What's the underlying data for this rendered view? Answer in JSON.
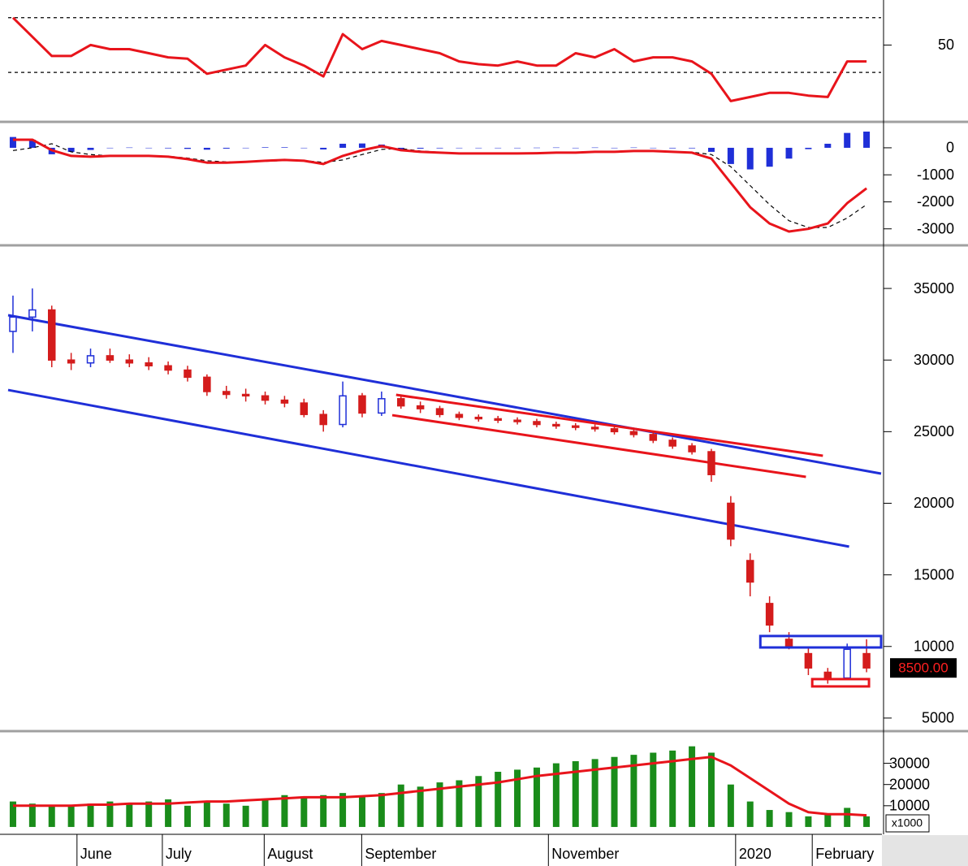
{
  "chart_data": [
    {
      "type": "line",
      "x": [
        1,
        5,
        9,
        13,
        17,
        21,
        25,
        29,
        33,
        37,
        41,
        45,
        49,
        53,
        57,
        61,
        65,
        69,
        73,
        77,
        81,
        85,
        89,
        93,
        97,
        101,
        105,
        109,
        113,
        117,
        121,
        125,
        129,
        133,
        137,
        141,
        145,
        149,
        153,
        157,
        161,
        165,
        169,
        173,
        177
      ],
      "xlim": [
        0,
        180
      ],
      "ylim": [
        -5,
        77
      ],
      "yticks": [
        50
      ],
      "hlines": [
        30,
        70
      ],
      "series": [
        {
          "style": "solid",
          "color": "#e8141b",
          "values": [
            70,
            56,
            42,
            42,
            50,
            47,
            47,
            44,
            41,
            40,
            29,
            32,
            35,
            50,
            41,
            35,
            27,
            58,
            47,
            53,
            50,
            47,
            44,
            38,
            36,
            35,
            38,
            35,
            35,
            44,
            41,
            47,
            38,
            41,
            41,
            38,
            29,
            9,
            12,
            15,
            15,
            13,
            12,
            38,
            38
          ]
        }
      ]
    },
    {
      "type": "line",
      "x": [
        1,
        5,
        9,
        13,
        17,
        21,
        25,
        29,
        33,
        37,
        41,
        45,
        49,
        53,
        57,
        61,
        65,
        69,
        73,
        77,
        81,
        85,
        89,
        93,
        97,
        101,
        105,
        109,
        113,
        117,
        121,
        125,
        129,
        133,
        137,
        141,
        145,
        149,
        153,
        157,
        161,
        165,
        169,
        173,
        177
      ],
      "xlim": [
        0,
        180
      ],
      "ylim": [
        -3550,
        900
      ],
      "yticks": [
        0,
        -1000,
        -2000,
        -3000
      ],
      "series": [
        {
          "style": "bar",
          "color": "#1f2fd8",
          "values": [
            400,
            300,
            -240,
            -150,
            -80,
            0,
            10,
            0,
            -20,
            -40,
            -70,
            -30,
            0,
            20,
            20,
            -10,
            -60,
            150,
            160,
            120,
            -60,
            -30,
            -20,
            -10,
            0,
            0,
            0,
            5,
            10,
            0,
            10,
            0,
            10,
            0,
            -20,
            -20,
            -150,
            -600,
            -800,
            -700,
            -400,
            -50,
            150,
            550,
            600
          ]
        },
        {
          "style": "dashed",
          "color": "#000000",
          "values": [
            -100,
            0,
            150,
            -150,
            -250,
            -300,
            -310,
            -300,
            -310,
            -380,
            -480,
            -520,
            -520,
            -500,
            -470,
            -470,
            -540,
            -450,
            -250,
            -60,
            -30,
            -120,
            -160,
            -200,
            -210,
            -210,
            -210,
            -205,
            -190,
            -180,
            -160,
            -150,
            -130,
            -120,
            -130,
            -160,
            -250,
            -700,
            -1400,
            -2100,
            -2700,
            -2950,
            -2950,
            -2600,
            -2100
          ]
        },
        {
          "style": "solid",
          "color": "#e8141b",
          "values": [
            300,
            300,
            -90,
            -300,
            -330,
            -300,
            -300,
            -300,
            -330,
            -420,
            -550,
            -550,
            -520,
            -480,
            -450,
            -480,
            -600,
            -300,
            -90,
            60,
            -90,
            -150,
            -180,
            -210,
            -210,
            -210,
            -210,
            -200,
            -180,
            -180,
            -150,
            -150,
            -120,
            -120,
            -150,
            -180,
            -400,
            -1300,
            -2200,
            -2800,
            -3100,
            -3000,
            -2800,
            -2050,
            -1500
          ]
        }
      ]
    },
    {
      "type": "candlestick",
      "x": [
        1,
        5,
        9,
        13,
        17,
        21,
        25,
        29,
        33,
        37,
        41,
        45,
        49,
        53,
        57,
        61,
        65,
        69,
        73,
        77,
        81,
        85,
        89,
        93,
        97,
        101,
        105,
        109,
        113,
        117,
        121,
        125,
        129,
        133,
        137,
        141,
        145,
        149,
        153,
        157,
        161,
        165,
        169,
        173,
        177
      ],
      "xlim": [
        0,
        180
      ],
      "ylim": [
        4200,
        37840
      ],
      "yticks": [
        5000,
        10000,
        15000,
        20000,
        25000,
        30000,
        35000
      ],
      "up_color": "#1f2fd8",
      "down_color": "#d41c1c",
      "open": [
        32000,
        33000,
        33500,
        30000,
        29800,
        30300,
        30000,
        29800,
        29600,
        29300,
        28800,
        27800,
        27600,
        27500,
        27200,
        27000,
        26200,
        25500,
        27500,
        26300,
        27300,
        26800,
        26600,
        26200,
        26000,
        25900,
        25800,
        25700,
        25500,
        25400,
        25300,
        25200,
        25000,
        24800,
        24400,
        24000,
        23600,
        20000,
        16000,
        13000,
        10500,
        9500,
        8200,
        7800,
        9500
      ],
      "high": [
        34500,
        35000,
        33800,
        30500,
        30800,
        30800,
        30400,
        30200,
        29900,
        29600,
        29000,
        28200,
        28000,
        27800,
        27500,
        27300,
        26500,
        28500,
        27700,
        27800,
        27600,
        27100,
        26800,
        26400,
        26200,
        26100,
        26000,
        25900,
        25700,
        25600,
        25500,
        25400,
        25200,
        25000,
        24600,
        24200,
        23800,
        20500,
        16500,
        13500,
        11000,
        10000,
        8500,
        10200,
        10500
      ],
      "low": [
        30500,
        32000,
        29500,
        29300,
        29500,
        29800,
        29500,
        29300,
        29000,
        28500,
        27500,
        27300,
        27100,
        26900,
        26700,
        26000,
        25000,
        25300,
        26000,
        26100,
        26600,
        26300,
        26000,
        25800,
        25700,
        25600,
        25500,
        25300,
        25200,
        25100,
        25000,
        24800,
        24600,
        24200,
        23800,
        23400,
        21500,
        17000,
        13500,
        11000,
        9800,
        8000,
        7400,
        7700,
        8200
      ],
      "close": [
        33000,
        33500,
        30000,
        29800,
        30300,
        30000,
        29800,
        29600,
        29300,
        28800,
        27800,
        27600,
        27500,
        27200,
        27000,
        26200,
        25500,
        27500,
        26300,
        27300,
        26800,
        26600,
        26200,
        26000,
        25900,
        25800,
        25700,
        25500,
        25400,
        25300,
        25200,
        25000,
        24800,
        24400,
        24000,
        23600,
        22000,
        17500,
        14500,
        11500,
        10000,
        8500,
        7800,
        9800,
        8500
      ],
      "lines": [
        {
          "x": [
            0,
            180
          ],
          "y": [
            33130,
            22070
          ],
          "color": "#1f2fd8"
        },
        {
          "x": [
            0,
            173.4
          ],
          "y": [
            27910,
            16970
          ],
          "color": "#1f2fd8"
        },
        {
          "x": [
            80,
            168
          ],
          "y": [
            27570,
            23320
          ],
          "color": "#e8141b"
        },
        {
          "x": [
            79.2,
            164.5
          ],
          "y": [
            26150,
            21840
          ],
          "color": "#e8141b"
        }
      ],
      "rects": [
        {
          "x": [
            155.1,
            180
          ],
          "y": [
            9930,
            10730
          ],
          "color": "#1f2fd8"
        },
        {
          "x": [
            165.8,
            177.5
          ],
          "y": [
            7210,
            7720
          ],
          "color": "#e8141b"
        }
      ],
      "last_price": {
        "value": 8500,
        "label": "8500.00"
      }
    },
    {
      "type": "bar",
      "x": [
        1,
        5,
        9,
        13,
        17,
        21,
        25,
        29,
        33,
        37,
        41,
        45,
        49,
        53,
        57,
        61,
        65,
        69,
        73,
        77,
        81,
        85,
        89,
        93,
        97,
        101,
        105,
        109,
        113,
        117,
        121,
        125,
        129,
        133,
        137,
        141,
        145,
        149,
        153,
        157,
        161,
        165,
        169,
        173,
        177
      ],
      "xlim": [
        0,
        180
      ],
      "ylim": [
        -2700,
        44000
      ],
      "yticks": [
        10000,
        20000,
        30000
      ],
      "unit_label": "x1000",
      "xticks": [
        {
          "value": 14.2,
          "label": "June"
        },
        {
          "value": 31.8,
          "label": "July"
        },
        {
          "value": 52.8,
          "label": "August"
        },
        {
          "value": 72.9,
          "label": "September"
        },
        {
          "value": 111.4,
          "label": "November"
        },
        {
          "value": 150,
          "label": "2020"
        },
        {
          "value": 165.8,
          "label": "February"
        }
      ],
      "series": [
        {
          "style": "bar",
          "color": "#1a8c1a",
          "values": [
            12000,
            11000,
            10000,
            10000,
            11000,
            12000,
            11000,
            12000,
            13000,
            10000,
            12000,
            11000,
            10000,
            13000,
            15000,
            14000,
            15000,
            16000,
            14000,
            16000,
            20000,
            19000,
            21000,
            22000,
            24000,
            26000,
            27000,
            28000,
            30000,
            31000,
            32000,
            33000,
            34000,
            35000,
            36000,
            38000,
            35000,
            20000,
            12000,
            8000,
            7000,
            5000,
            6000,
            9000,
            5000
          ]
        },
        {
          "style": "solid",
          "color": "#e8141b",
          "values": [
            10000,
            10000,
            10000,
            10000,
            10500,
            10500,
            11000,
            11000,
            11000,
            11500,
            12000,
            12000,
            12500,
            13000,
            13500,
            14000,
            14000,
            14000,
            14500,
            15000,
            16000,
            17000,
            18000,
            19000,
            20000,
            21000,
            22500,
            24000,
            25000,
            26000,
            27000,
            28000,
            29000,
            30000,
            31000,
            32000,
            33000,
            29000,
            23000,
            17000,
            11000,
            7000,
            6000,
            6000,
            5500
          ]
        }
      ]
    }
  ]
}
